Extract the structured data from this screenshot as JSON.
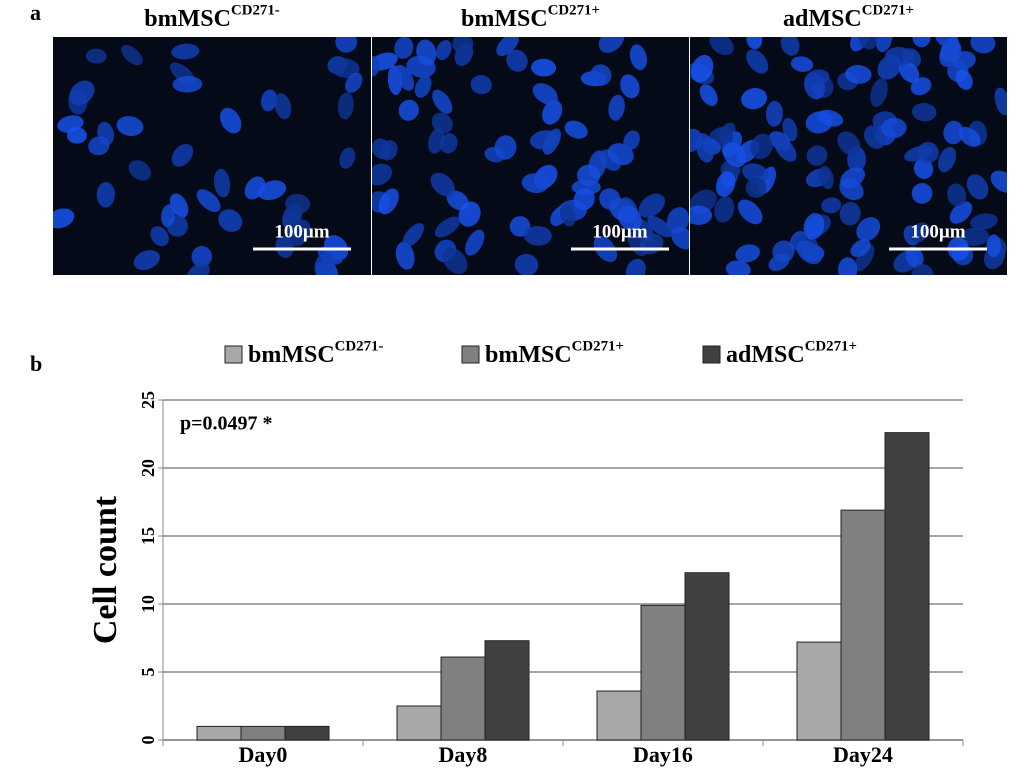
{
  "panel_a": {
    "label": "a",
    "images": [
      {
        "title": "bmMSC",
        "superscript": "CD271-",
        "scale_bar": "100µm"
      },
      {
        "title": "bmMSC",
        "superscript": "CD271+",
        "scale_bar": "100µm"
      },
      {
        "title": "adMSC",
        "superscript": "CD271+",
        "scale_bar": "100µm"
      }
    ]
  },
  "panel_b_label": "b",
  "chart_data": {
    "type": "bar",
    "y_label": "Cell count",
    "annotation": "p=0.0497 *",
    "categories": [
      "Day0",
      "Day8",
      "Day16",
      "Day24"
    ],
    "series": [
      {
        "name": "bmMSC",
        "superscript": "CD271-",
        "color": "#a8a8a8",
        "values": [
          1,
          2.5,
          3.6,
          7.2
        ]
      },
      {
        "name": "bmMSC",
        "superscript": "CD271+",
        "color": "#808080",
        "values": [
          1,
          6.1,
          9.9,
          16.9
        ]
      },
      {
        "name": "adMSC",
        "superscript": "CD271+",
        "color": "#404040",
        "values": [
          1,
          7.3,
          12.3,
          22.6
        ]
      }
    ],
    "ylim": [
      0,
      25
    ],
    "yticks": [
      0,
      5,
      10,
      15,
      20,
      25
    ],
    "grid": true,
    "legend": "top"
  }
}
